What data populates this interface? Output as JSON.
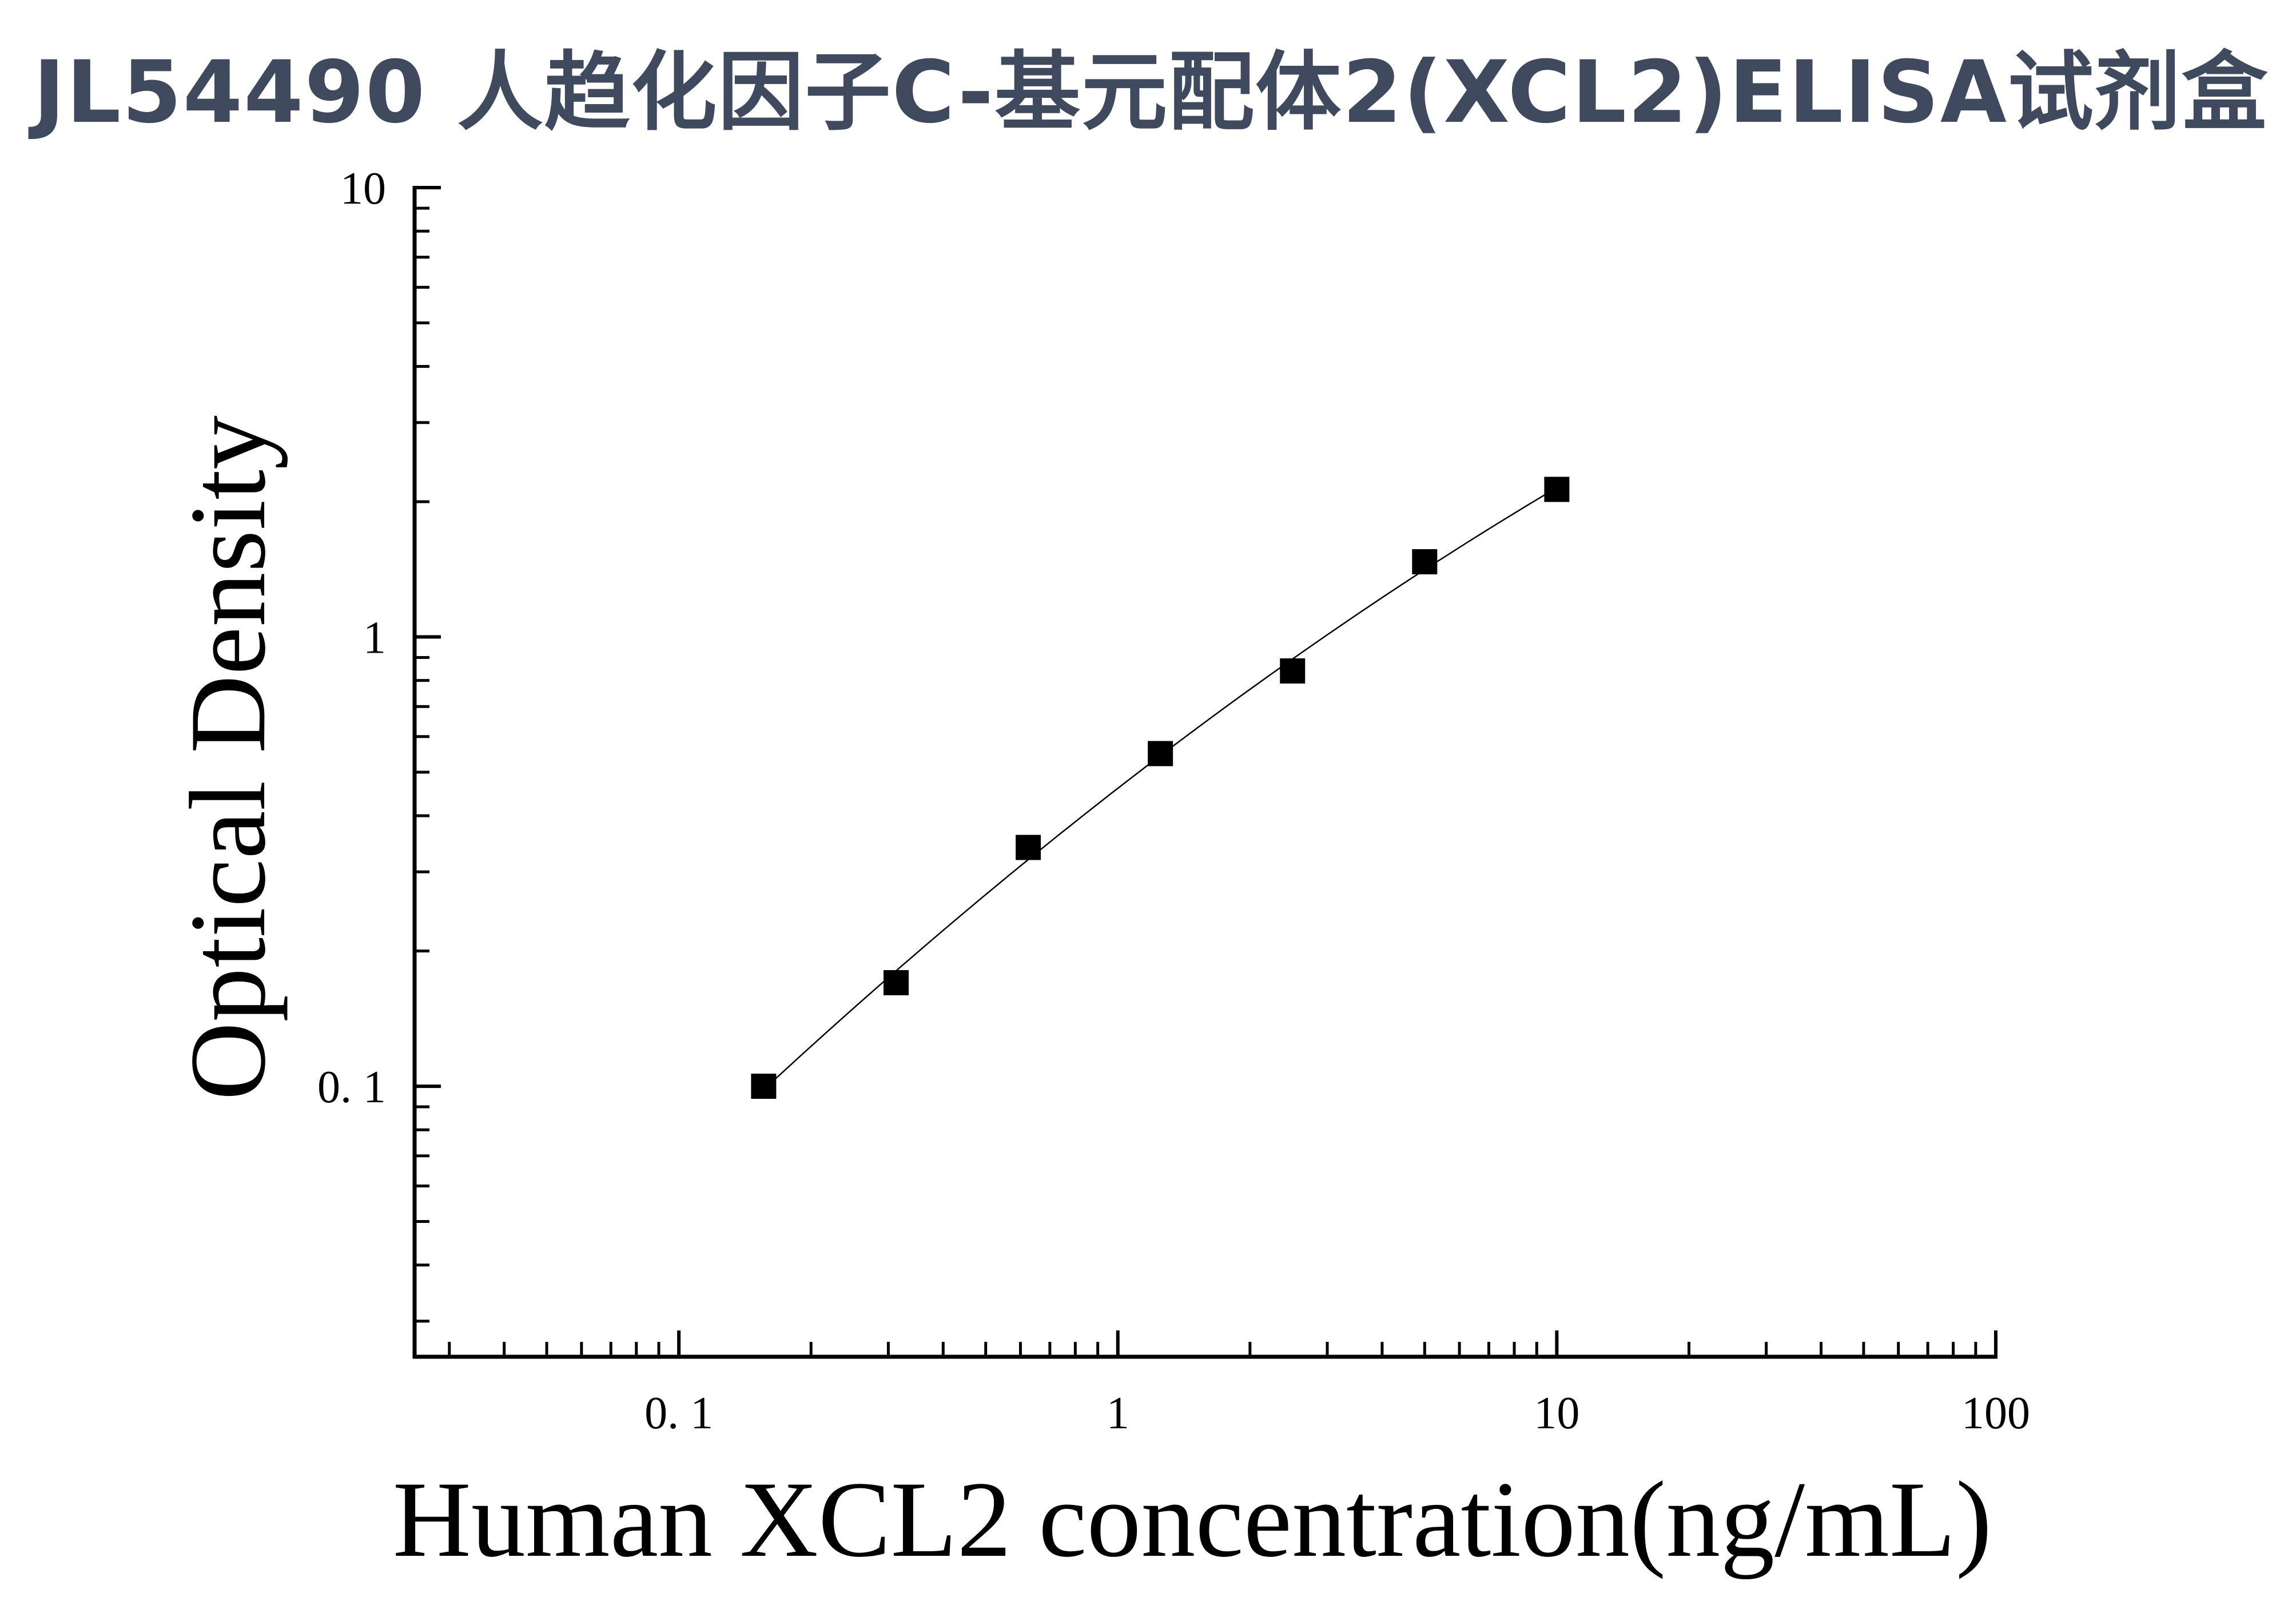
{
  "title": "JL54490 人趋化因子C-基元配体2(XCL2)ELISA试剂盒",
  "chart_data": {
    "type": "scatter",
    "xlabel": "Human XCL2 concentration(ng/mL)",
    "ylabel": "Optical Density",
    "xscale": "log",
    "yscale": "log",
    "xlim": [
      0.025,
      100
    ],
    "ylim": [
      0.025,
      10
    ],
    "x_ticks": [
      {
        "value": 0.1,
        "label": "0. 1"
      },
      {
        "value": 1,
        "label": "1"
      },
      {
        "value": 10,
        "label": "10"
      },
      {
        "value": 100,
        "label": "100"
      }
    ],
    "y_ticks": [
      {
        "value": 0.1,
        "label": "0. 1"
      },
      {
        "value": 1,
        "label": "1"
      },
      {
        "value": 10,
        "label": "10"
      }
    ],
    "grid": false,
    "series": [
      {
        "x": [
          0.156,
          0.3125,
          0.625,
          1.25,
          2.5,
          5,
          10
        ],
        "y": [
          0.1,
          0.17,
          0.34,
          0.55,
          0.84,
          1.47,
          2.13
        ],
        "marker": "square",
        "fit_line": true
      }
    ],
    "colors": {
      "marks": "#000000",
      "title": "#3f4a5e"
    }
  }
}
